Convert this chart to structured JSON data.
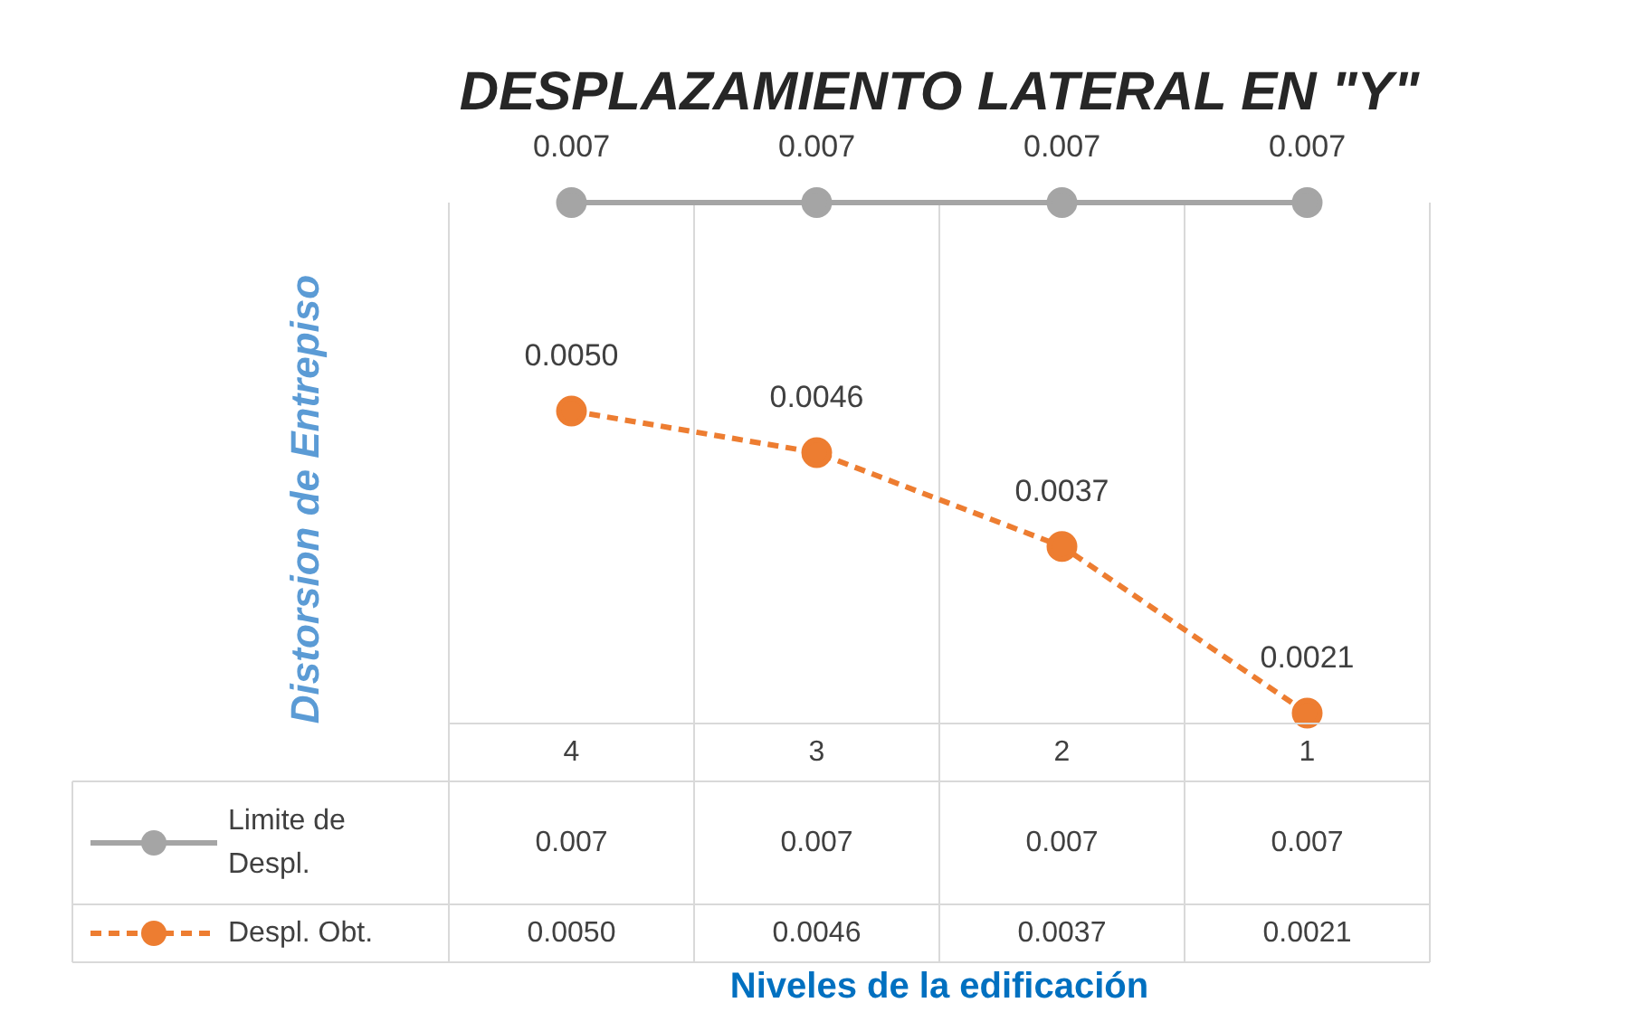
{
  "chart_data": {
    "type": "line",
    "title": "DESPLAZAMIENTO LATERAL EN \"Y\"",
    "ylabel": "Distorsion de Entrepiso",
    "annotations": [
      "Niveles de la edificación"
    ],
    "categories": [
      "4",
      "3",
      "2",
      "1"
    ],
    "series": [
      {
        "name": "Limite de Despl.",
        "color": "#a5a5a5",
        "values": [
          0.007,
          0.007,
          0.007,
          0.007
        ],
        "value_labels": [
          "0.007",
          "0.007",
          "0.007",
          "0.007"
        ],
        "line_style": "solid"
      },
      {
        "name": "Despl. Obt.",
        "color": "#ed7d31",
        "values": [
          0.005,
          0.0046,
          0.0037,
          0.0021
        ],
        "value_labels": [
          "0.0050",
          "0.0046",
          "0.0037",
          "0.0021"
        ],
        "line_style": "dashed"
      }
    ],
    "marker": "circle",
    "grid": "x",
    "legend": "bottom"
  }
}
